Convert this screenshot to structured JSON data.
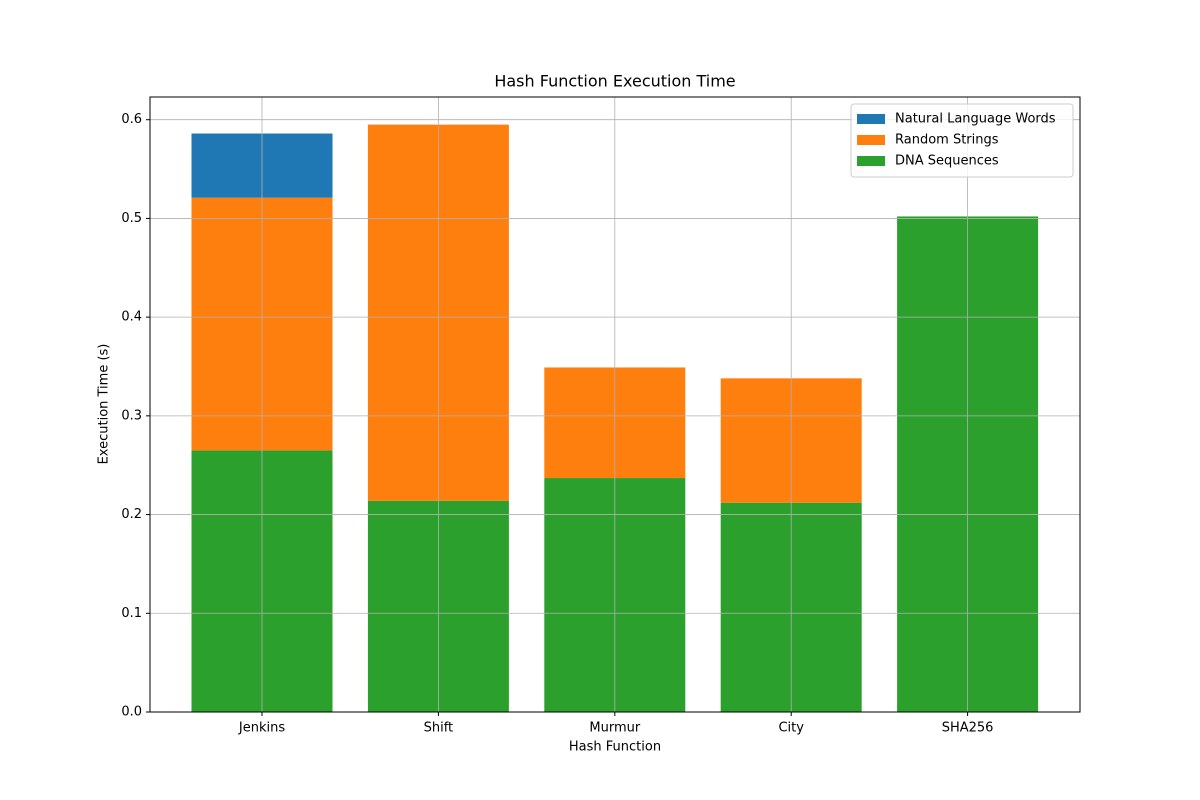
{
  "chart_data": {
    "type": "stacked-bar",
    "title": "Hash Function Execution Time",
    "x_label": "Hash Function",
    "y_label": "Execution Time (s)",
    "categories": [
      "Jenkins",
      "Shift",
      "Murmur",
      "City",
      "SHA256"
    ],
    "series": [
      {
        "name": "DNA Sequences",
        "color": "#2ca02c",
        "values": [
          0.265,
          0.214,
          0.237,
          0.212,
          0.502
        ]
      },
      {
        "name": "Random Strings",
        "color": "#ff7f0e",
        "values": [
          0.256,
          0.381,
          0.112,
          0.126,
          0
        ]
      },
      {
        "name": "Natural Language Words",
        "color": "#1f77b4",
        "values": [
          0.065,
          0,
          0,
          0,
          0
        ]
      }
    ],
    "ylim": [
      0,
      0.623
    ],
    "yticks": [
      {
        "value": 0,
        "label": "0.0"
      },
      {
        "value": 0.1,
        "label": "0.1"
      },
      {
        "value": 0.2,
        "label": "0.2"
      },
      {
        "value": 0.3,
        "label": "0.3"
      },
      {
        "value": 0.4,
        "label": "0.4"
      },
      {
        "value": 0.5,
        "label": "0.5"
      },
      {
        "value": 0.6,
        "label": "0.6"
      }
    ],
    "grid": true,
    "legend": "upper-right"
  }
}
